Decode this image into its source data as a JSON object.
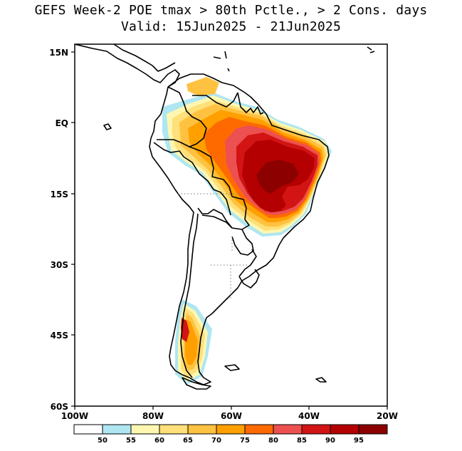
{
  "title": {
    "line1": "GEFS Week-2 POE tmax > 80th Pctle., > 2 Cons. days",
    "line2": "Valid: 15Jun2025 - 21Jun2025"
  },
  "map": {
    "lat_labels": [
      "15N",
      "EQ",
      "15S",
      "30S",
      "45S",
      "60S"
    ],
    "lon_labels": [
      "100W",
      "80W",
      "60W",
      "40W",
      "20W"
    ]
  },
  "colorbar": {
    "levels": [
      "50",
      "55",
      "60",
      "65",
      "70",
      "75",
      "80",
      "85",
      "90",
      "95"
    ],
    "colors": [
      "#ffffff",
      "#aee6f2",
      "#fff7b0",
      "#ffe07a",
      "#ffc240",
      "#ffa000",
      "#ff6a00",
      "#ec5050",
      "#d21414",
      "#b40000",
      "#8c0000"
    ]
  }
}
